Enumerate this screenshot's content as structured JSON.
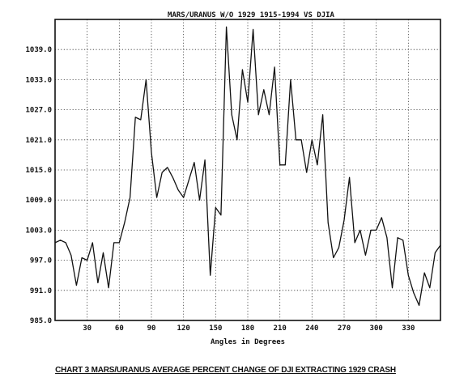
{
  "chart_data": {
    "type": "line",
    "title": "MARS/URANUS W/O 1929 1915-1994 VS DJIA",
    "xlabel": "Angles in Degrees",
    "ylabel": "",
    "x_ticks": [
      30,
      60,
      90,
      120,
      150,
      180,
      210,
      240,
      270,
      300,
      330
    ],
    "y_ticks": [
      985.0,
      991.0,
      997.0,
      1003.0,
      1009.0,
      1015.0,
      1021.0,
      1027.0,
      1033.0,
      1039.0
    ],
    "y_tick_labels": [
      "985.0",
      "991.0",
      "997.0",
      "1003.0",
      "1009.0",
      "1015.0",
      "1021.0",
      "1027.0",
      "1033.0",
      "1039.0"
    ],
    "xlim": [
      0,
      360
    ],
    "ylim": [
      985,
      1045
    ],
    "grid": true,
    "series": [
      {
        "x": [
          0,
          5,
          10,
          15,
          20,
          25,
          30,
          35,
          40,
          45,
          50,
          55,
          60,
          65,
          70,
          75,
          80,
          85,
          90,
          95,
          100,
          105,
          110,
          115,
          120,
          125,
          130,
          135,
          140,
          145,
          150,
          155,
          160,
          165,
          170,
          175,
          180,
          185,
          190,
          195,
          200,
          205,
          210,
          215,
          220,
          225,
          230,
          235,
          240,
          245,
          250,
          255,
          260,
          265,
          270,
          275,
          280,
          285,
          290,
          295,
          300,
          305,
          310,
          315,
          320,
          325,
          330,
          335,
          340,
          345,
          350,
          355,
          360
        ],
        "y": [
          1000.5,
          1001.0,
          1000.5,
          998.0,
          992.0,
          997.5,
          997.0,
          1000.5,
          992.5,
          998.5,
          991.5,
          1000.5,
          1000.5,
          1004.5,
          1009.5,
          1025.5,
          1025.0,
          1033.0,
          1018.5,
          1009.5,
          1014.5,
          1015.5,
          1013.5,
          1011.0,
          1009.5,
          1013.0,
          1016.5,
          1009.0,
          1017.0,
          994.0,
          1007.5,
          1006.0,
          1043.5,
          1026.0,
          1021.0,
          1035.0,
          1028.5,
          1043.0,
          1026.0,
          1031.0,
          1026.0,
          1035.5,
          1016.0,
          1016.0,
          1033.0,
          1021.0,
          1021.0,
          1014.5,
          1021.0,
          1016.0,
          1026.0,
          1004.5,
          997.5,
          999.5,
          1005.0,
          1013.5,
          1000.5,
          1003.0,
          998.0,
          1003.0,
          1003.0,
          1005.5,
          1001.5,
          991.5,
          1001.5,
          1001.0,
          994.0,
          990.5,
          988.0,
          994.5,
          991.5,
          998.5,
          1000.0
        ]
      }
    ]
  },
  "caption": "CHART 3  MARS/URANUS AVERAGE PERCENT CHANGE OF DJI EXTRACTING 1929 CRASH"
}
